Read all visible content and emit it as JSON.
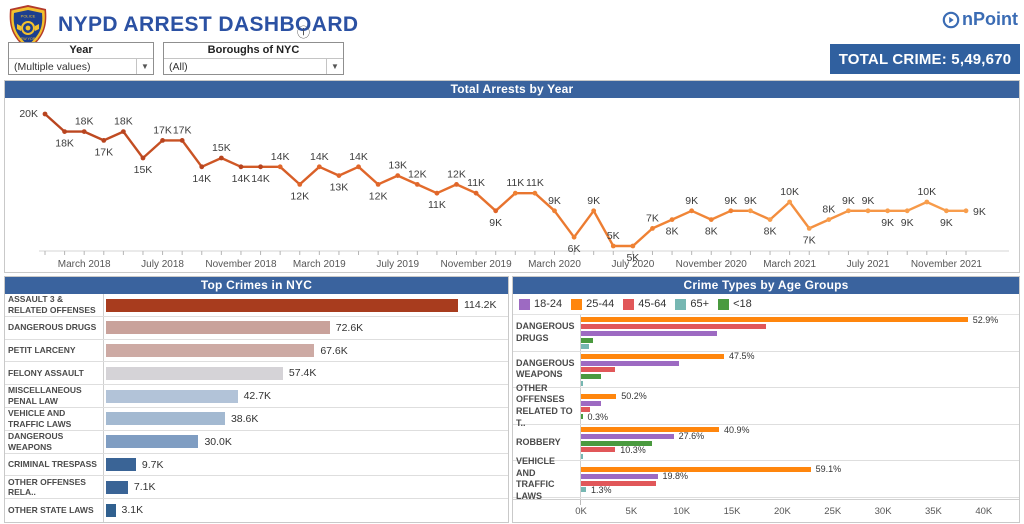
{
  "header": {
    "title": "NYPD ARREST DASHBOARD",
    "info_icon": "ⓘ",
    "brand": "OnPoint",
    "brand_text": "nPoint",
    "total_crime": "TOTAL CRIME: 5,49,670"
  },
  "filters": [
    {
      "label": "Year",
      "value": "(Multiple values)"
    },
    {
      "label": "Boroughs of NYC",
      "value": "(All)"
    }
  ],
  "colors": {
    "panel_bar": "#3a639e",
    "badge": "#30609f",
    "brand_blue": "#3b6cb4",
    "title_blue": "#2b51a3",
    "line_year_colors": [
      "#b8441f",
      "#e0662a",
      "#ef8133",
      "#f89e4d"
    ]
  },
  "chart_data": [
    {
      "type": "line",
      "title": "Total Arrests by Year",
      "unit": "K",
      "x": [
        "Jan 2018",
        "Feb 2018",
        "Mar 2018",
        "Apr 2018",
        "May 2018",
        "Jun 2018",
        "Jul 2018",
        "Aug 2018",
        "Sep 2018",
        "Oct 2018",
        "Nov 2018",
        "Dec 2018",
        "Jan 2019",
        "Feb 2019",
        "Mar 2019",
        "Apr 2019",
        "May 2019",
        "Jun 2019",
        "Jul 2019",
        "Aug 2019",
        "Sep 2019",
        "Oct 2019",
        "Nov 2019",
        "Dec 2019",
        "Jan 2020",
        "Feb 2020",
        "Mar 2020",
        "Apr 2020",
        "May 2020",
        "Jun 2020",
        "Jul 2020",
        "Aug 2020",
        "Sep 2020",
        "Oct 2020",
        "Nov 2020",
        "Dec 2020",
        "Jan 2021",
        "Feb 2021",
        "Mar 2021",
        "Apr 2021",
        "May 2021",
        "Jun 2021",
        "Jul 2021",
        "Aug 2021",
        "Sep 2021",
        "Oct 2021",
        "Nov 2021",
        "Dec 2021"
      ],
      "values": [
        20,
        18,
        18,
        17,
        18,
        15,
        17,
        17,
        14,
        15,
        14,
        14,
        14,
        12,
        14,
        13,
        14,
        12,
        13,
        12,
        11,
        12,
        11,
        9,
        11,
        11,
        9,
        6,
        9,
        5,
        5,
        7,
        8,
        9,
        8,
        9,
        9,
        8,
        10,
        7,
        8,
        9,
        9,
        9,
        9,
        10,
        9,
        9
      ],
      "label_placement": [
        "left",
        "below",
        "above",
        "below",
        "above",
        "below",
        "above",
        "above",
        "below",
        "above",
        "below",
        "below",
        "above",
        "below",
        "above",
        "below",
        "above",
        "below",
        "above",
        "above",
        "below",
        "above",
        "above",
        "below",
        "above",
        "above",
        "above",
        "below",
        "above",
        "above",
        "below",
        "above",
        "below",
        "above",
        "below",
        "above",
        "above",
        "below",
        "above",
        "below",
        "above",
        "above",
        "above",
        "below",
        "below",
        "above",
        "below",
        "right"
      ],
      "x_tick_labels": [
        "March 2018",
        "July 2018",
        "November 2018",
        "March 2019",
        "July 2019",
        "November 2019",
        "March 2020",
        "July 2020",
        "November 2020",
        "March 2021",
        "July 2021",
        "November 2021"
      ],
      "ylim": [
        4,
        21
      ],
      "grid": false,
      "legend_position": "none"
    },
    {
      "type": "bar",
      "title": "Top Crimes in NYC",
      "orientation": "horizontal",
      "xmax": 130,
      "categories": [
        "ASSAULT 3 & RELATED OFFENSES",
        "DANGEROUS DRUGS",
        "PETIT LARCENY",
        "FELONY ASSAULT",
        "MISCELLANEOUS PENAL LAW",
        "VEHICLE AND TRAFFIC LAWS",
        "DANGEROUS WEAPONS",
        "CRIMINAL TRESPASS",
        "OTHER OFFENSES RELA..",
        "OTHER STATE LAWS"
      ],
      "values": [
        114.2,
        72.6,
        67.6,
        57.4,
        42.7,
        38.6,
        30.0,
        9.7,
        7.1,
        3.1
      ],
      "value_labels": [
        "114.2K",
        "72.6K",
        "67.6K",
        "57.4K",
        "42.7K",
        "38.6K",
        "30.0K",
        "9.7K",
        "7.1K",
        "3.1K"
      ],
      "bar_colors": [
        "#a83c1e",
        "#c9a29b",
        "#cdaaa4",
        "#d5d3d7",
        "#b2c3d8",
        "#a3b9d1",
        "#7f9dc2",
        "#3a6496",
        "#3a6496",
        "#30608f"
      ]
    },
    {
      "type": "grouped_bar",
      "title": "Crime Types by Age Groups",
      "orientation": "horizontal",
      "xmax": 40,
      "x_ticks": [
        "0K",
        "5K",
        "10K",
        "15K",
        "20K",
        "25K",
        "30K",
        "35K",
        "40K"
      ],
      "legend": [
        {
          "label": "18-24",
          "color": "#9d6ac2"
        },
        {
          "label": "25-44",
          "color": "#ff860d"
        },
        {
          "label": "45-64",
          "color": "#e15759"
        },
        {
          "label": "65+",
          "color": "#76b7b2"
        },
        {
          "label": "<18",
          "color": "#4a9a3f"
        }
      ],
      "groups": [
        {
          "category": "DANGEROUS DRUGS",
          "bars": [
            {
              "age": "25-44",
              "value": 38.4,
              "label": "52.9%"
            },
            {
              "age": "45-64",
              "value": 18.4
            },
            {
              "age": "18-24",
              "value": 13.5
            },
            {
              "age": "<18",
              "value": 1.2
            },
            {
              "age": "65+",
              "value": 0.8
            }
          ]
        },
        {
          "category": "DANGEROUS WEAPONS",
          "bars": [
            {
              "age": "25-44",
              "value": 14.2,
              "label": "47.5%"
            },
            {
              "age": "18-24",
              "value": 9.7
            },
            {
              "age": "45-64",
              "value": 3.4
            },
            {
              "age": "<18",
              "value": 2.0
            },
            {
              "age": "65+",
              "value": 0.15
            }
          ]
        },
        {
          "category": "OTHER OFFENSES RELATED TO T..",
          "bars": [
            {
              "age": "25-44",
              "value": 3.5,
              "label": "50.2%"
            },
            {
              "age": "18-24",
              "value": 2.0
            },
            {
              "age": "45-64",
              "value": 0.9
            },
            {
              "age": "<18",
              "value": 0.06,
              "label": "0.3%"
            }
          ]
        },
        {
          "category": "ROBBERY",
          "bars": [
            {
              "age": "25-44",
              "value": 13.7,
              "label": "40.9%"
            },
            {
              "age": "18-24",
              "value": 9.2,
              "label": "27.6%"
            },
            {
              "age": "<18",
              "value": 7.1
            },
            {
              "age": "45-64",
              "value": 3.4,
              "label": "10.3%"
            },
            {
              "age": "65+",
              "value": 0.1
            }
          ]
        },
        {
          "category": "VEHICLE AND TRAFFIC LAWS",
          "bars": [
            {
              "age": "25-44",
              "value": 22.8,
              "label": "59.1%"
            },
            {
              "age": "18-24",
              "value": 7.6,
              "label": "19.8%"
            },
            {
              "age": "45-64",
              "value": 7.4
            },
            {
              "age": "65+",
              "value": 0.5,
              "label": "1.3%"
            }
          ]
        }
      ]
    }
  ]
}
